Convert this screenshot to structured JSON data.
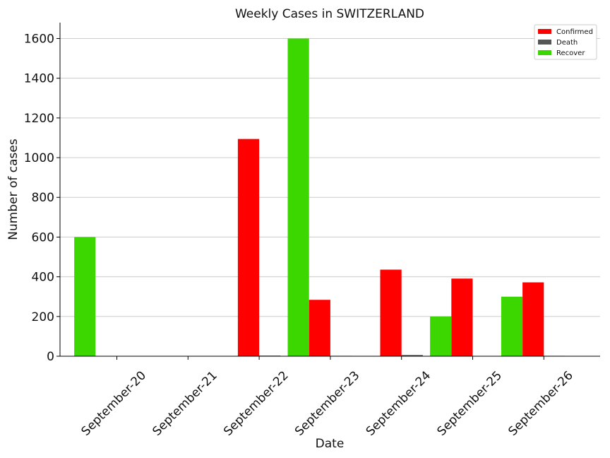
{
  "chart_data": {
    "type": "bar",
    "title": "Weekly Cases in SWITZERLAND",
    "xlabel": "Date",
    "ylabel": "Number of cases",
    "categories": [
      "September-20",
      "September-21",
      "September-22",
      "September-23",
      "September-24",
      "September-25",
      "September-26"
    ],
    "ylim": [
      0,
      1680
    ],
    "yticks": [
      0,
      200,
      400,
      600,
      800,
      1000,
      1200,
      1400,
      1600
    ],
    "grid": "horizontal",
    "legend_position": "top-right",
    "series": [
      {
        "name": "Confirmed",
        "color": "#ff0000",
        "values": [
          0,
          0,
          1094,
          284,
          436,
          391,
          372
        ]
      },
      {
        "name": "Death",
        "color": "#555555",
        "values": [
          0,
          0,
          3,
          2,
          6,
          0,
          2
        ]
      },
      {
        "name": "Recover",
        "color": "#3cd700",
        "values": [
          600,
          0,
          0,
          1600,
          0,
          200,
          300
        ]
      }
    ]
  }
}
